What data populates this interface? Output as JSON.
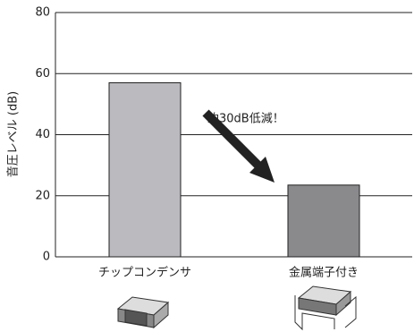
{
  "chart_data": {
    "type": "bar",
    "ylabel": "音圧レベル (dB)",
    "categories": [
      "チップコンデンサ",
      "金属端子付き"
    ],
    "values": [
      57,
      23.5
    ],
    "colors": [
      "#bbbbbf",
      "#8a8a8d"
    ],
    "ylim": [
      0,
      80
    ],
    "yticks": [
      0,
      20,
      40,
      60,
      80
    ],
    "grid": true,
    "annotation": "約30dB低減！"
  }
}
